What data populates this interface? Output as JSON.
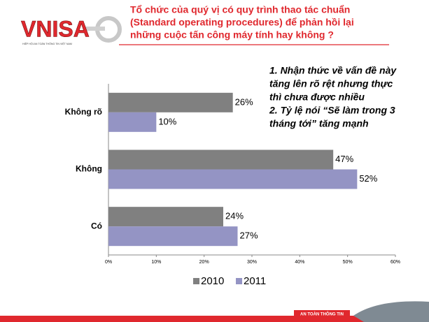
{
  "logo": {
    "text": "VNISA",
    "subtitle": "HIỆP HỘI AN TOÀN THÔNG TIN VIỆT NAM"
  },
  "title_lines": [
    "Tổ chức của quý vị có quy trình thao tác chuẩn",
    "(Standard operating procedures) để phản hồi lại",
    "những cuộc tấn công máy tính hay không ?"
  ],
  "annotation_lines": [
    "1. Nhận thức về vấn đề này",
    "tăng lên rõ rệt nhưng thực",
    "thì chưa được nhiều",
    "2. Tỷ lệ nói “Sẽ làm trong 3",
    "tháng tới” tăng mạnh"
  ],
  "footer": "AN TOÀN THÔNG TIN",
  "chart_data": {
    "type": "hbar",
    "categories": [
      "Không rõ",
      "Không",
      "Có"
    ],
    "series": [
      {
        "name": "2010",
        "color": "#808080",
        "values": [
          26,
          47,
          24
        ],
        "value_labels": [
          "26%",
          "47%",
          "24%"
        ]
      },
      {
        "name": "2011",
        "color": "#9494c4",
        "values": [
          10,
          52,
          27
        ],
        "value_labels": [
          "10%",
          "52%",
          "27%"
        ]
      }
    ],
    "xlim": [
      0,
      60
    ],
    "xticks": [
      {
        "value": 0,
        "label": "0%"
      },
      {
        "value": 10,
        "label": "10%"
      },
      {
        "value": 20,
        "label": "20%"
      },
      {
        "value": 30,
        "label": "30%"
      },
      {
        "value": 40,
        "label": "40%"
      },
      {
        "value": 50,
        "label": "50%"
      },
      {
        "value": 60,
        "label": "60%"
      }
    ],
    "legend": "bottom"
  }
}
